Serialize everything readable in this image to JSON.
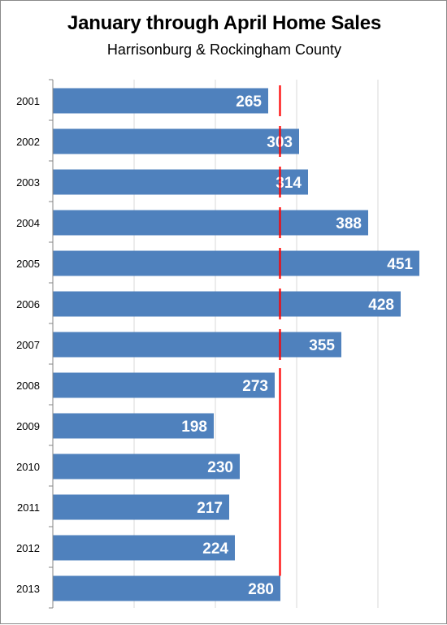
{
  "chart_data": {
    "type": "bar",
    "orientation": "horizontal",
    "title": "January through April Home Sales",
    "subtitle": "Harrisonburg & Rockingham County",
    "categories": [
      "2001",
      "2002",
      "2003",
      "2004",
      "2005",
      "2006",
      "2007",
      "2008",
      "2009",
      "2010",
      "2011",
      "2012",
      "2013"
    ],
    "values": [
      265,
      303,
      314,
      388,
      451,
      428,
      355,
      273,
      198,
      230,
      217,
      224,
      280
    ],
    "xlim": [
      0,
      480
    ],
    "gridlines_at": [
      0,
      100,
      200,
      300,
      400
    ],
    "grid": true,
    "tick_labels_shown": false,
    "data_labels": true,
    "reference_line": {
      "value": 280,
      "style": "dashed-to-solid",
      "color": "#ff0000"
    },
    "colors": {
      "bar": "#4f81bd",
      "grid": "#d9d9d9",
      "axis": "#868686",
      "reference": "#ff0000",
      "label": "#ffffff"
    }
  }
}
